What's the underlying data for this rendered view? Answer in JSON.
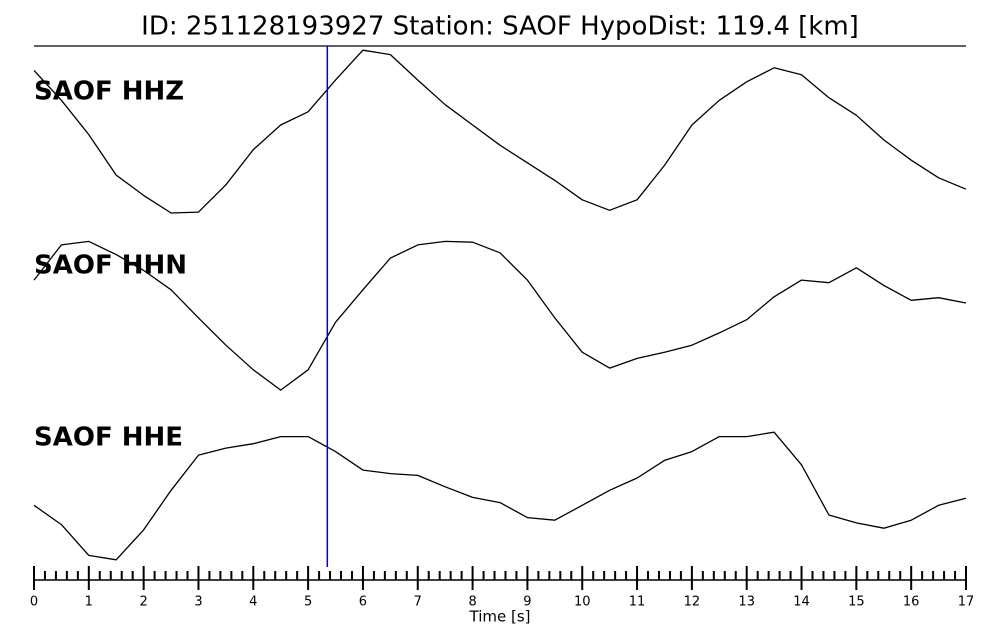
{
  "chart_data": {
    "type": "line",
    "title": "ID: 251128193927   Station: SAOF   HypoDist:   119.4 [km]",
    "xlabel": "Time [s]",
    "xlim": [
      0,
      17
    ],
    "xticks": [
      0,
      1,
      2,
      3,
      4,
      5,
      6,
      7,
      8,
      9,
      10,
      11,
      12,
      13,
      14,
      15,
      16,
      17
    ],
    "xminor_ticks": [
      0.2,
      0.4,
      0.6,
      0.8,
      1.2,
      1.4,
      1.6,
      1.8,
      2.2,
      2.4,
      2.6,
      2.8,
      3.2,
      3.4,
      3.6,
      3.8,
      4.2,
      4.4,
      4.6,
      4.8,
      5.2,
      5.4,
      5.6,
      5.8,
      6.2,
      6.4,
      6.6,
      6.8,
      7.2,
      7.4,
      7.6,
      7.8,
      8.2,
      8.4,
      8.6,
      8.8,
      9.2,
      9.4,
      9.6,
      9.8,
      10.2,
      10.4,
      10.6,
      10.8,
      11.2,
      11.4,
      11.6,
      11.8,
      12.2,
      12.4,
      12.6,
      12.8,
      13.2,
      13.4,
      13.6,
      13.8,
      14.2,
      14.4,
      14.6,
      14.8,
      15.2,
      15.4,
      15.6,
      15.8,
      16.2,
      16.4,
      16.6,
      16.8
    ],
    "ylim": [
      -1,
      1
    ],
    "label_color": "#4c9a00",
    "pick": {
      "x": 5.35,
      "color": "#0000dd"
    },
    "x": [
      0,
      0.5,
      1,
      1.5,
      2,
      2.5,
      3,
      3.5,
      4,
      4.5,
      5,
      5.5,
      6,
      6.5,
      7,
      7.5,
      8,
      8.5,
      9,
      9.5,
      10,
      10.5,
      11,
      11.5,
      12,
      12.5,
      13,
      13.5,
      14,
      14.5,
      15,
      15.5,
      16,
      16.5,
      17
    ],
    "series": [
      {
        "name": "SAOF HHZ",
        "color": "#000000",
        "values": [
          0.7,
          0.36,
          -0.03,
          -0.49,
          -0.72,
          -0.92,
          -0.91,
          -0.6,
          -0.2,
          0.08,
          0.23,
          0.59,
          0.93,
          0.88,
          0.59,
          0.31,
          0.08,
          -0.15,
          -0.35,
          -0.55,
          -0.77,
          -0.89,
          -0.77,
          -0.38,
          0.08,
          0.36,
          0.57,
          0.73,
          0.65,
          0.39,
          0.19,
          -0.09,
          -0.32,
          -0.52,
          -0.65
        ]
      },
      {
        "name": "SAOF HHN",
        "color": "#000000",
        "values": [
          0.34,
          0.74,
          0.78,
          0.63,
          0.45,
          0.23,
          -0.09,
          -0.4,
          -0.68,
          -0.91,
          -0.68,
          -0.14,
          0.23,
          0.59,
          0.74,
          0.78,
          0.77,
          0.65,
          0.34,
          -0.09,
          -0.48,
          -0.66,
          -0.55,
          -0.48,
          -0.4,
          -0.26,
          -0.11,
          0.15,
          0.34,
          0.31,
          0.48,
          0.28,
          0.11,
          0.14,
          0.08
        ]
      },
      {
        "name": "SAOF HHE",
        "color": "#000000",
        "values": [
          -0.06,
          -0.28,
          -0.63,
          -0.68,
          -0.34,
          0.11,
          0.51,
          0.59,
          0.64,
          0.72,
          0.72,
          0.55,
          0.34,
          0.3,
          0.28,
          0.15,
          0.03,
          -0.03,
          -0.2,
          -0.23,
          -0.06,
          0.11,
          0.25,
          0.45,
          0.55,
          0.72,
          0.72,
          0.77,
          0.4,
          -0.17,
          -0.26,
          -0.32,
          -0.23,
          -0.06,
          0.02
        ]
      }
    ]
  }
}
